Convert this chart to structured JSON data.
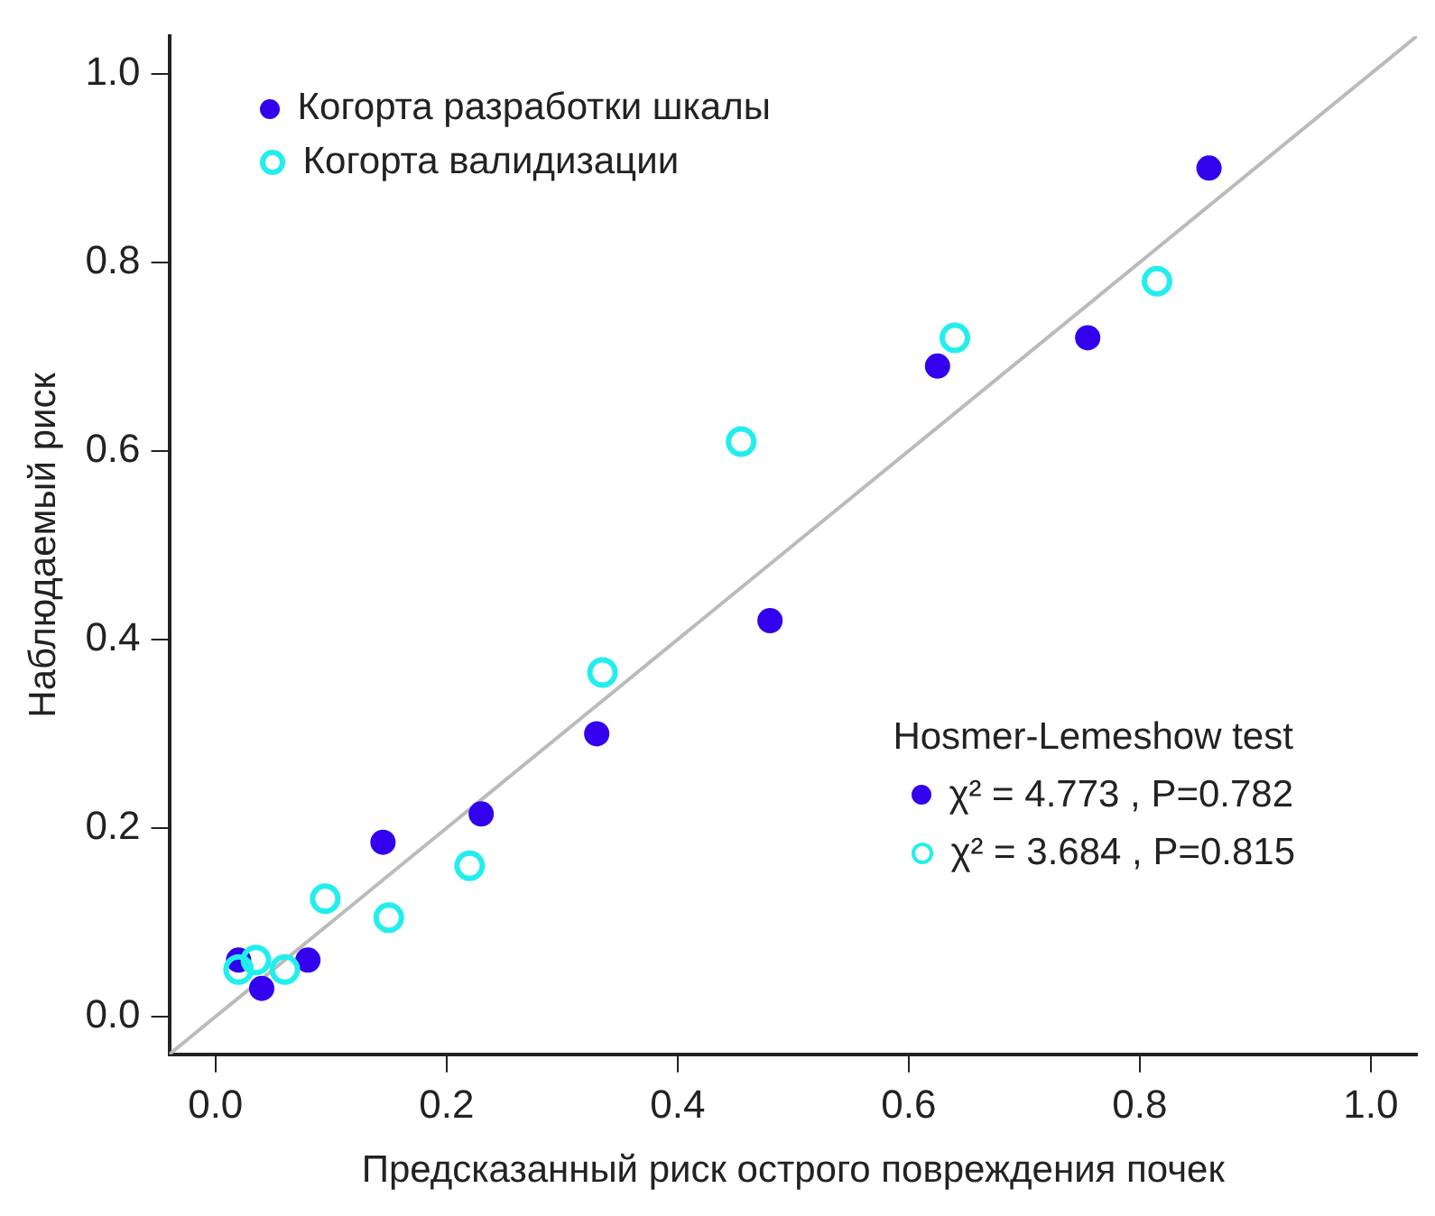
{
  "chart_data": {
    "type": "scatter",
    "xlabel": "Предсказанный риск острого повреждения почек",
    "ylabel": "Наблюдаемый риск",
    "xlim": [
      -0.04,
      1.04
    ],
    "ylim": [
      -0.04,
      1.04
    ],
    "xticks": [
      {
        "value": 0,
        "label": "0.0"
      },
      0.2,
      0.4,
      0.6,
      0.8,
      {
        "value": 1,
        "label": "1.0"
      }
    ],
    "yticks": [
      {
        "value": 0,
        "label": "0.0"
      },
      0.2,
      0.4,
      0.6,
      0.8,
      {
        "value": 1,
        "label": "1.0"
      }
    ],
    "grid": false,
    "legend": "top left",
    "marker": "circle",
    "series": [
      {
        "name": "Когорта разработки шкалы",
        "color": "#3300ee",
        "x": [
          0.02,
          0.04,
          0.08,
          0.145,
          0.23,
          0.33,
          0.48,
          0.625,
          0.755,
          0.86
        ],
        "values": [
          0.06,
          0.03,
          0.06,
          0.185,
          0.215,
          0.3,
          0.42,
          0.69,
          0.72,
          0.9
        ]
      },
      {
        "name": "Когорта валидизации",
        "color": "#22eeee",
        "x": [
          0.02,
          0.035,
          0.06,
          0.095,
          0.15,
          0.22,
          0.335,
          0.455,
          0.64,
          0.815
        ],
        "values": [
          0.05,
          0.06,
          0.05,
          0.125,
          0.105,
          0.16,
          0.365,
          0.61,
          0.72,
          0.78
        ]
      },
      {
        "type": "line",
        "color": "#bbbbbb",
        "marker": "none",
        "x": [
          -0.04,
          1.04
        ],
        "values": [
          -0.04,
          1.04
        ]
      }
    ],
    "annotations": [
      "Hosmer-Lemeshow test",
      "χ² = 4.773 , P=0.782",
      "χ² = 3.684 , P=0.815"
    ]
  }
}
